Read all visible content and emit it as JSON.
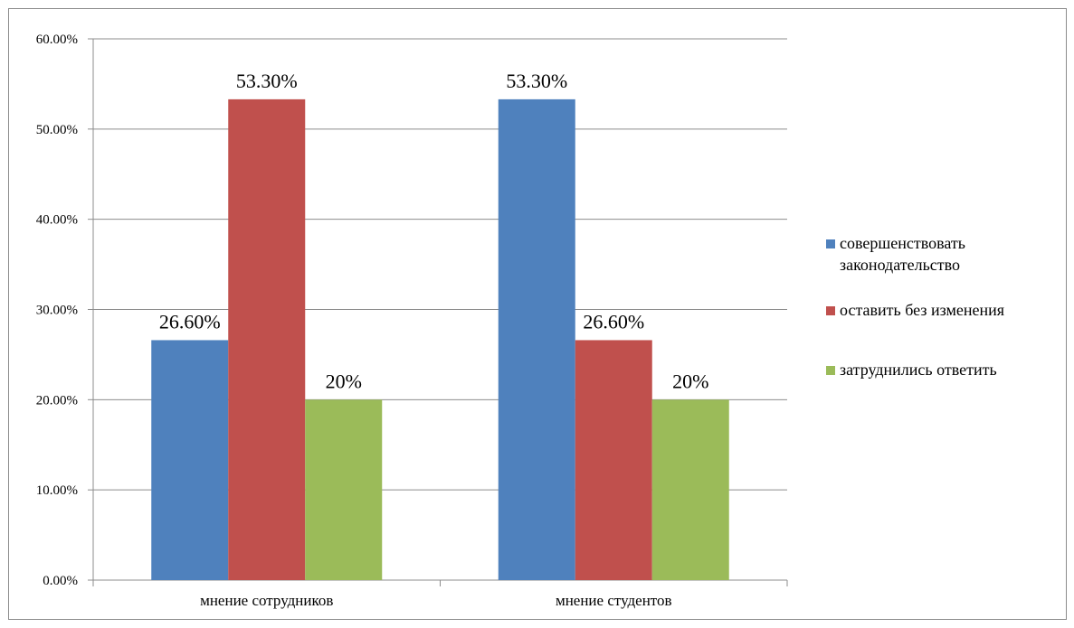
{
  "chart_data": {
    "type": "bar",
    "title": "",
    "xlabel": "",
    "ylabel": "",
    "ylim": [
      0,
      60
    ],
    "y_ticks": [
      0,
      10,
      20,
      30,
      40,
      50,
      60
    ],
    "y_tick_labels": [
      "0.00%",
      "10.00%",
      "20.00%",
      "30.00%",
      "40.00%",
      "50.00%",
      "60.00%"
    ],
    "grid": true,
    "legend_position": "right",
    "categories": [
      "мнение сотрудников",
      "мнение студентов"
    ],
    "series": [
      {
        "name": "совершенствовать законодательство",
        "legend_lines": [
          "совершенствовать",
          "законодательство"
        ],
        "color": "#4f81bd",
        "values": [
          26.6,
          53.3
        ],
        "labels": [
          "26.60%",
          "53.30%"
        ]
      },
      {
        "name": "оставить без изменения",
        "legend_lines": [
          "оставить без изменения"
        ],
        "color": "#c0504d",
        "values": [
          53.3,
          26.6
        ],
        "labels": [
          "53.30%",
          "26.60%"
        ]
      },
      {
        "name": "затруднились ответить",
        "legend_lines": [
          "затруднились ответить"
        ],
        "color": "#9bbb59",
        "values": [
          20,
          20
        ],
        "labels": [
          "20%",
          "20%"
        ]
      }
    ]
  }
}
